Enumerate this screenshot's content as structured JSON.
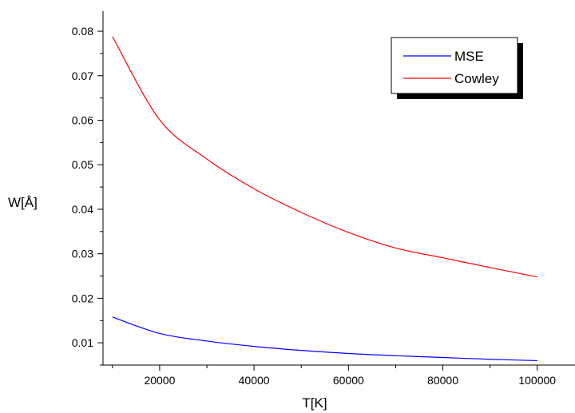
{
  "chart_data": {
    "type": "line",
    "xlabel": "T[K]",
    "ylabel": "W[Å]",
    "xlim": [
      8000,
      108000
    ],
    "ylim": [
      0.005,
      0.0845
    ],
    "x_ticks": [
      20000,
      40000,
      60000,
      80000,
      100000
    ],
    "x_tick_labels": [
      "20000",
      "40000",
      "60000",
      "80000",
      "100000"
    ],
    "y_ticks": [
      0.01,
      0.02,
      0.03,
      0.04,
      0.05,
      0.06,
      0.07,
      0.08
    ],
    "y_tick_labels": [
      "0.01",
      "0.02",
      "0.03",
      "0.04",
      "0.05",
      "0.06",
      "0.07",
      "0.08"
    ],
    "grid": false,
    "legend_position": "top-right",
    "series": [
      {
        "name": "MSE",
        "color": "#0000ff",
        "x": [
          10000,
          20000,
          30000,
          40000,
          50000,
          60000,
          70000,
          80000,
          90000,
          100000
        ],
        "y": [
          0.0158,
          0.0121,
          0.0104,
          0.0092,
          0.0083,
          0.0076,
          0.0071,
          0.0067,
          0.0063,
          0.006
        ]
      },
      {
        "name": "Cowley",
        "color": "#ff0000",
        "x": [
          10000,
          20000,
          30000,
          40000,
          50000,
          60000,
          70000,
          80000,
          90000,
          100000
        ],
        "y": [
          0.0788,
          0.0601,
          0.0513,
          0.0446,
          0.0393,
          0.0348,
          0.0313,
          0.0291,
          0.0269,
          0.0248
        ]
      }
    ]
  }
}
